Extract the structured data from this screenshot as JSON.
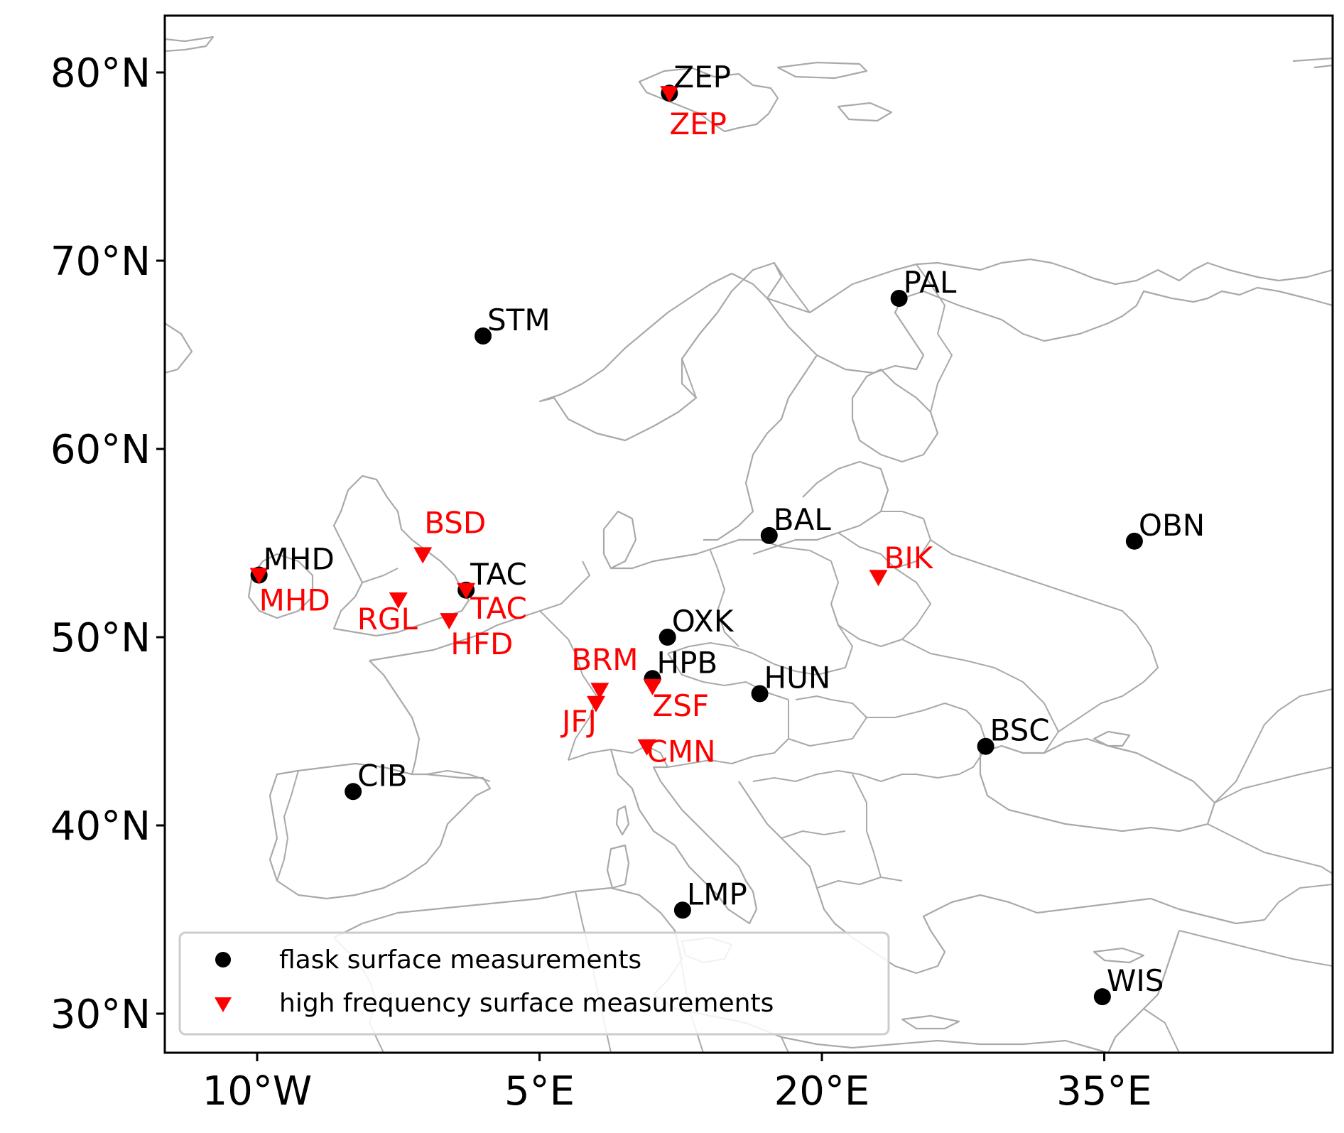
{
  "map": {
    "extent": {
      "lon_min": -13.3,
      "lon_max": 48.5,
      "lat_min": 28,
      "lat_max": 83
    },
    "x_ticks": [
      {
        "lon": -10,
        "label": "10°W"
      },
      {
        "lon": 5,
        "label": "5°E"
      },
      {
        "lon": 20,
        "label": "20°E"
      },
      {
        "lon": 35,
        "label": "35°E"
      }
    ],
    "y_ticks": [
      {
        "lat": 30,
        "label": "30°N"
      },
      {
        "lat": 40,
        "label": "40°N"
      },
      {
        "lat": 50,
        "label": "50°N"
      },
      {
        "lat": 60,
        "label": "60°N"
      },
      {
        "lat": 70,
        "label": "70°N"
      },
      {
        "lat": 80,
        "label": "80°N"
      }
    ],
    "colors": {
      "flask": "#000000",
      "high_frequency": "#ff0000",
      "coastline": "#a9a9a9",
      "frame": "#000000"
    },
    "flask_stations": [
      {
        "code": "ZEP",
        "lon": 11.9,
        "lat": 78.9
      },
      {
        "code": "PAL",
        "lon": 24.1,
        "lat": 68.0
      },
      {
        "code": "STM",
        "lon": 2.0,
        "lat": 66.0
      },
      {
        "code": "BAL",
        "lon": 17.2,
        "lat": 55.4
      },
      {
        "code": "OBN",
        "lon": 36.6,
        "lat": 55.1
      },
      {
        "code": "MHD",
        "lon": -9.9,
        "lat": 53.3
      },
      {
        "code": "TAC",
        "lon": 1.1,
        "lat": 52.5
      },
      {
        "code": "OXK",
        "lon": 11.8,
        "lat": 50.0
      },
      {
        "code": "HPB",
        "lon": 11.0,
        "lat": 47.8
      },
      {
        "code": "HUN",
        "lon": 16.7,
        "lat": 47.0
      },
      {
        "code": "BSC",
        "lon": 28.7,
        "lat": 44.2
      },
      {
        "code": "CIB",
        "lon": -4.9,
        "lat": 41.8
      },
      {
        "code": "LMP",
        "lon": 12.6,
        "lat": 35.5
      },
      {
        "code": "WIS",
        "lon": 34.9,
        "lat": 30.9
      }
    ],
    "high_frequency_stations": [
      {
        "code": "ZEP",
        "lon": 11.9,
        "lat": 78.9
      },
      {
        "code": "BSD",
        "lon": -1.2,
        "lat": 54.4
      },
      {
        "code": "BIK",
        "lon": 23.0,
        "lat": 53.2
      },
      {
        "code": "MHD",
        "lon": -9.9,
        "lat": 53.3
      },
      {
        "code": "TAC",
        "lon": 1.1,
        "lat": 52.5
      },
      {
        "code": "RGL",
        "lon": -2.5,
        "lat": 52.0
      },
      {
        "code": "HFD",
        "lon": 0.2,
        "lat": 50.9
      },
      {
        "code": "BRM",
        "lon": 8.2,
        "lat": 47.2
      },
      {
        "code": "JFJ",
        "lon": 8.0,
        "lat": 46.5
      },
      {
        "code": "ZSF",
        "lon": 11.0,
        "lat": 47.4
      },
      {
        "code": "CMN",
        "lon": 10.7,
        "lat": 44.2
      }
    ],
    "legend": {
      "flask_label": "flask surface measurements",
      "hf_label": "high frequency surface measurements"
    }
  }
}
